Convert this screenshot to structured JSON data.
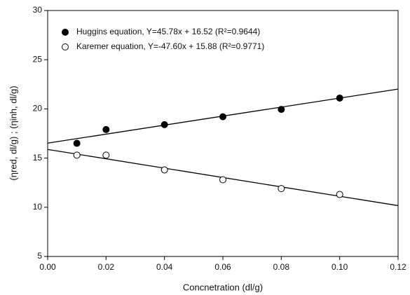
{
  "chart_data": {
    "type": "scatter",
    "x_label": "Concnetration (dl/g)",
    "y_label": "(ηred, dl/g) ; (ηinh, dl/g)",
    "x": [
      0.01,
      0.02,
      0.04,
      0.06,
      0.08,
      0.1
    ],
    "series": [
      {
        "name": "Huggins equation, Y=45.78x + 16.52 (R²=0.9644)",
        "color": "#000000",
        "marker": "filled",
        "values": [
          16.5,
          17.9,
          18.4,
          19.2,
          19.95,
          21.1
        ],
        "slope": 45.78,
        "intercept": 16.52
      },
      {
        "name": "Karemer equation, Y=-47.60x + 15.88 (R²=0.9771)",
        "color": "#000000",
        "marker": "open",
        "values": [
          15.3,
          15.3,
          13.8,
          12.8,
          11.9,
          11.3
        ],
        "slope": -47.6,
        "intercept": 15.88
      }
    ],
    "xlim": [
      0,
      0.12
    ],
    "xticks": [
      {
        "value": 0,
        "label": "0.00"
      },
      {
        "value": 0.02,
        "label": "0.02"
      },
      {
        "value": 0.04,
        "label": "0.04"
      },
      {
        "value": 0.06,
        "label": "0.06"
      },
      {
        "value": 0.08,
        "label": "0.08"
      },
      {
        "value": 0.1,
        "label": "0.10"
      },
      {
        "value": 0.12,
        "label": "0.12"
      }
    ],
    "ylim": [
      5,
      30
    ],
    "yticks": [
      5,
      10,
      15,
      20,
      25,
      30
    ],
    "legend": "upper-left"
  }
}
